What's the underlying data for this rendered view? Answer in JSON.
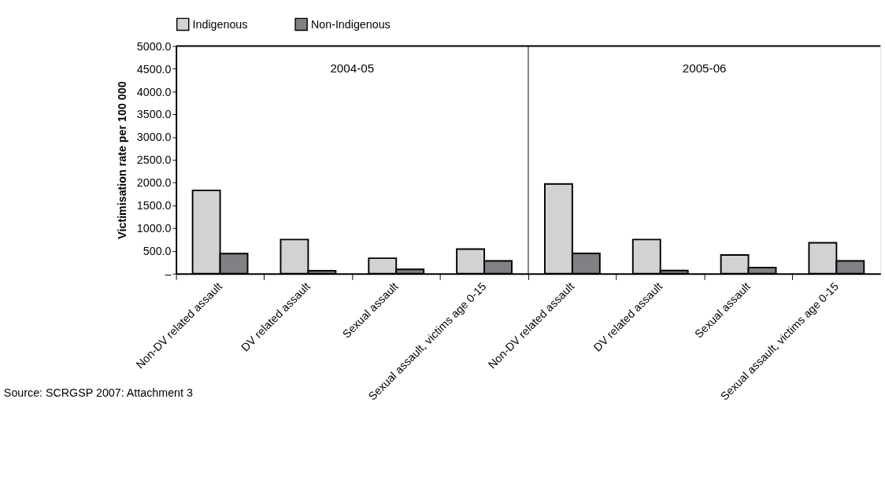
{
  "chart_data": {
    "type": "bar",
    "ylabel": "Victimisation rate per 100 000",
    "categories": [
      "Non-DV related assault",
      "DV related assault",
      "Sexual assault",
      "Sexual assault, victims age 0-15",
      "Non-DV related assault",
      "DV related assault",
      "Sexual assault",
      "Sexual assault, victims age 0-15"
    ],
    "series": [
      {
        "name": "Indigenous",
        "color": "#d1d2d4",
        "values": [
          1830,
          750,
          340,
          540,
          1970,
          750,
          410,
          680
        ]
      },
      {
        "name": "Non-Indigenous",
        "color": "#808184",
        "values": [
          440,
          65,
          95,
          280,
          445,
          70,
          135,
          280
        ]
      }
    ],
    "ylim": [
      0,
      5000
    ],
    "yticks": [
      {
        "value": 0,
        "label": "–"
      },
      {
        "value": 500,
        "label": "500.0"
      },
      {
        "value": 1000,
        "label": "1000.0"
      },
      {
        "value": 1500,
        "label": "1500.0"
      },
      {
        "value": 2000,
        "label": "2000.0"
      },
      {
        "value": 2500,
        "label": "2500.0"
      },
      {
        "value": 3000,
        "label": "3000.0"
      },
      {
        "value": 3500,
        "label": "3500.0"
      },
      {
        "value": 4000,
        "label": "4000.0"
      },
      {
        "value": 4500,
        "label": "4500.0"
      },
      {
        "value": 5000,
        "label": "5000.0"
      }
    ],
    "annotations": [
      "2004-05",
      "2005-06",
      "Source: SCRGSP 2007: Attachment 3"
    ],
    "grid": false,
    "legend": "top"
  }
}
